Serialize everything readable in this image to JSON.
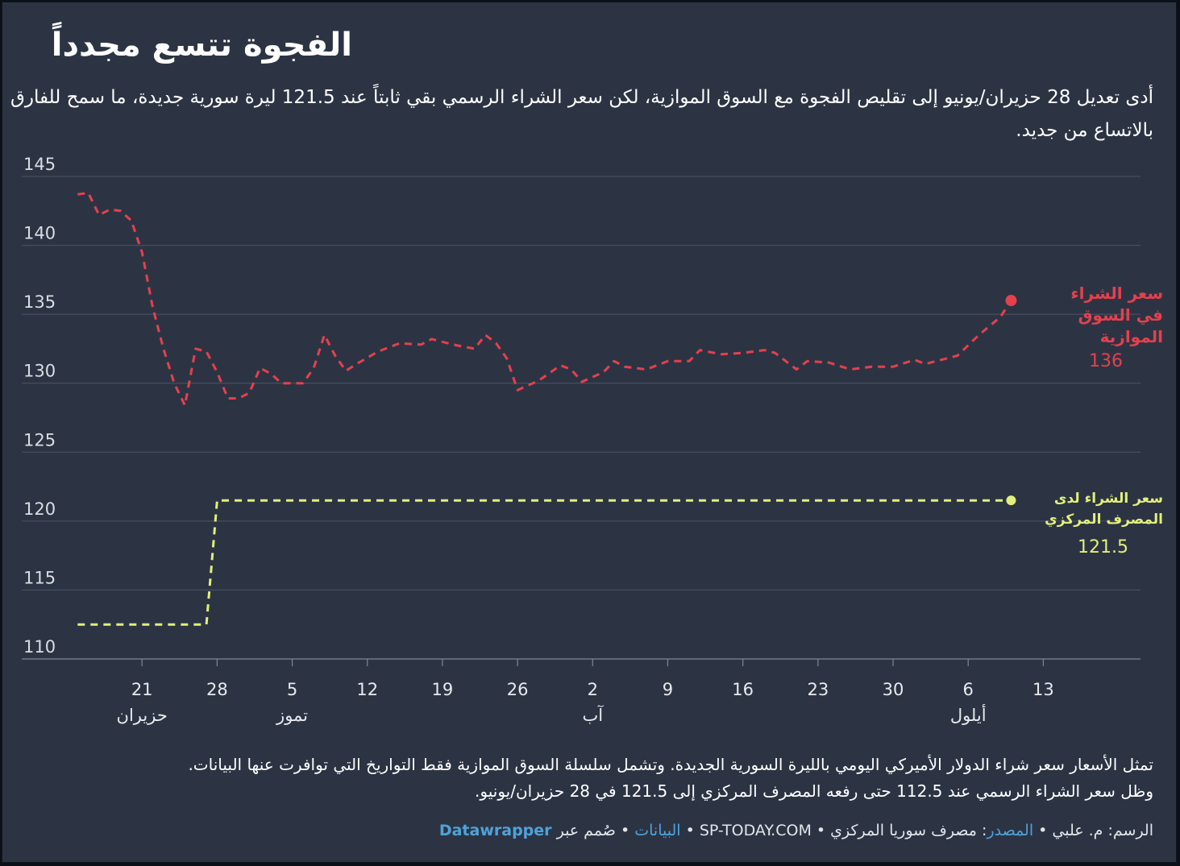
{
  "header": {
    "title": "الفجوة تتسع مجدداً",
    "subtitle": "أدى تعديل 28 حزيران/يونيو إلى تقليص الفجوة مع السوق الموازية، لكن سعر الشراء الرسمي بقي ثابتاً عند 121.5 ليرة سورية جديدة، ما سمح للفارق بالاتساع من جديد."
  },
  "chart_data": {
    "type": "line",
    "x_unit": "day",
    "ylim": [
      110,
      145
    ],
    "yticks": [
      110,
      115,
      120,
      125,
      130,
      135,
      140,
      145
    ],
    "grid": true,
    "x_domain": [
      "2025-06-14",
      "2025-09-15"
    ],
    "x_ticks": [
      {
        "date": "2025-06-21",
        "label": "21",
        "month": "حزيران"
      },
      {
        "date": "2025-06-28",
        "label": "28",
        "month": ""
      },
      {
        "date": "2025-07-05",
        "label": "5",
        "month": "تموز"
      },
      {
        "date": "2025-07-12",
        "label": "12",
        "month": ""
      },
      {
        "date": "2025-07-19",
        "label": "19",
        "month": ""
      },
      {
        "date": "2025-07-26",
        "label": "26",
        "month": ""
      },
      {
        "date": "2025-08-02",
        "label": "2",
        "month": "آب"
      },
      {
        "date": "2025-08-09",
        "label": "9",
        "month": ""
      },
      {
        "date": "2025-08-16",
        "label": "16",
        "month": ""
      },
      {
        "date": "2025-08-23",
        "label": "23",
        "month": ""
      },
      {
        "date": "2025-08-30",
        "label": "30",
        "month": ""
      },
      {
        "date": "2025-09-06",
        "label": "6",
        "month": "أيلول"
      },
      {
        "date": "2025-09-13",
        "label": "13",
        "month": ""
      }
    ],
    "series": [
      {
        "name": "سعر الشراء في السوق الموازية",
        "label_lines": [
          "سعر الشراء",
          "في السوق",
          "الموازية"
        ],
        "end_value_label": "136",
        "color": "#e5404d",
        "points": [
          [
            "2025-06-15",
            143.7
          ],
          [
            "2025-06-16",
            143.8
          ],
          [
            "2025-06-17",
            142.2
          ],
          [
            "2025-06-18",
            142.6
          ],
          [
            "2025-06-19",
            142.5
          ],
          [
            "2025-06-20",
            141.8
          ],
          [
            "2025-06-21",
            139.5
          ],
          [
            "2025-06-22",
            135.5
          ],
          [
            "2025-06-23",
            132.5
          ],
          [
            "2025-06-24",
            130.0
          ],
          [
            "2025-06-25",
            128.4
          ],
          [
            "2025-06-26",
            132.5
          ],
          [
            "2025-06-27",
            132.3
          ],
          [
            "2025-06-28",
            130.8
          ],
          [
            "2025-06-29",
            128.9
          ],
          [
            "2025-06-30",
            128.9
          ],
          [
            "2025-07-01",
            129.3
          ],
          [
            "2025-07-02",
            131.1
          ],
          [
            "2025-07-03",
            130.7
          ],
          [
            "2025-07-04",
            130.0
          ],
          [
            "2025-07-06",
            130.0
          ],
          [
            "2025-07-07",
            131.1
          ],
          [
            "2025-07-08",
            133.5
          ],
          [
            "2025-07-09",
            132.0
          ],
          [
            "2025-07-10",
            130.9
          ],
          [
            "2025-07-11",
            131.4
          ],
          [
            "2025-07-13",
            132.3
          ],
          [
            "2025-07-15",
            132.9
          ],
          [
            "2025-07-17",
            132.8
          ],
          [
            "2025-07-18",
            133.2
          ],
          [
            "2025-07-20",
            132.8
          ],
          [
            "2025-07-22",
            132.5
          ],
          [
            "2025-07-23",
            133.5
          ],
          [
            "2025-07-24",
            132.9
          ],
          [
            "2025-07-25",
            131.8
          ],
          [
            "2025-07-26",
            129.5
          ],
          [
            "2025-07-28",
            130.2
          ],
          [
            "2025-07-30",
            131.3
          ],
          [
            "2025-07-31",
            131.0
          ],
          [
            "2025-08-01",
            130.1
          ],
          [
            "2025-08-03",
            130.8
          ],
          [
            "2025-08-04",
            131.6
          ],
          [
            "2025-08-05",
            131.2
          ],
          [
            "2025-08-07",
            131.0
          ],
          [
            "2025-08-09",
            131.6
          ],
          [
            "2025-08-11",
            131.6
          ],
          [
            "2025-08-12",
            132.4
          ],
          [
            "2025-08-14",
            132.1
          ],
          [
            "2025-08-16",
            132.2
          ],
          [
            "2025-08-18",
            132.4
          ],
          [
            "2025-08-19",
            132.2
          ],
          [
            "2025-08-21",
            131.0
          ],
          [
            "2025-08-22",
            131.6
          ],
          [
            "2025-08-24",
            131.5
          ],
          [
            "2025-08-26",
            131.0
          ],
          [
            "2025-08-28",
            131.2
          ],
          [
            "2025-08-30",
            131.2
          ],
          [
            "2025-09-01",
            131.7
          ],
          [
            "2025-09-02",
            131.4
          ],
          [
            "2025-09-04",
            131.8
          ],
          [
            "2025-09-05",
            132.0
          ],
          [
            "2025-09-07",
            133.5
          ],
          [
            "2025-09-09",
            134.8
          ],
          [
            "2025-09-10",
            136.0
          ]
        ]
      },
      {
        "name": "سعر الشراء لدى المصرف المركزي",
        "label_lines": [
          "سعر الشراء لدى",
          "المصرف المركزي"
        ],
        "end_value_label": "121.5",
        "color": "#e3ef7a",
        "points": [
          [
            "2025-06-15",
            112.5
          ],
          [
            "2025-06-27",
            112.5
          ],
          [
            "2025-06-28",
            121.5
          ],
          [
            "2025-09-10",
            121.5
          ]
        ]
      }
    ]
  },
  "notes": {
    "line1": "تمثل الأسعار  سعر شراء الدولار الأميركي اليومي بالليرة السورية الجديدة. وتشمل سلسلة السوق الموازية فقط التواريخ التي توافرت عنها البيانات.",
    "line2": "وظل سعر الشراء الرسمي عند 112.5 حتى رفعه المصرف المركزي إلى 121.5 في 28 حزيران/يونيو."
  },
  "footer": {
    "credit": "الرسم: م. علبي • ",
    "source_label": "المصدر",
    "source_text": ": مصرف سوريا المركزي • SP-TODAY.COM • ",
    "data_label": "البيانات",
    "made_with": " • صُمم عبر ",
    "tool": "Datawrapper"
  }
}
